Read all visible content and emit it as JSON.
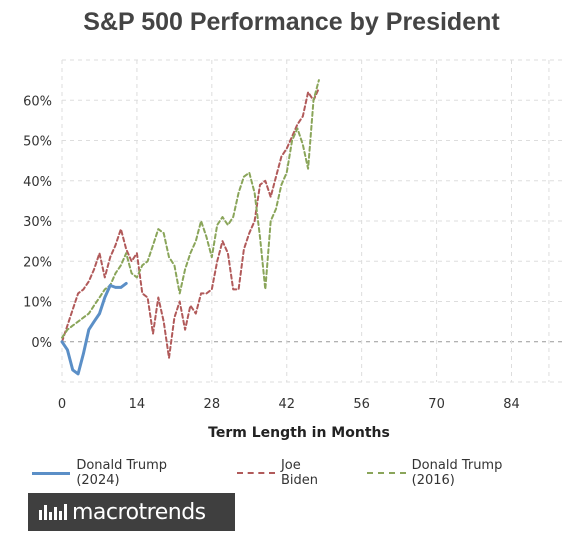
{
  "title": "S&P 500 Performance by President",
  "logo": {
    "text": "macrotrends"
  },
  "colors": {
    "trump2024": "#5b8fc7",
    "biden": "#b15a5a",
    "trump2016": "#8aa55a",
    "grid": "#dddddd",
    "zero": "#999999"
  },
  "chart_data": {
    "type": "line",
    "title": "S&P 500 Performance by President",
    "xlabel": "Term Length in Months",
    "ylabel": "",
    "xlim": [
      0,
      94
    ],
    "ylim": [
      -10,
      70
    ],
    "xticks": [
      0,
      14,
      28,
      42,
      56,
      70,
      84
    ],
    "yticks": [
      0,
      10,
      20,
      30,
      40,
      50,
      60
    ],
    "ytick_labels": [
      "0%",
      "10%",
      "20%",
      "30%",
      "40%",
      "50%",
      "60%"
    ],
    "grid": true,
    "legend_position": "bottom",
    "series": [
      {
        "name": "Donald Trump (2024)",
        "style": "solid",
        "color": "#5b8fc7",
        "x": [
          0,
          1,
          2,
          3,
          4,
          5,
          6,
          7,
          8,
          9,
          10,
          11,
          12
        ],
        "y": [
          0,
          -2,
          -7,
          -8,
          -3,
          3,
          5,
          7,
          11,
          14,
          13.5,
          13.5,
          14.5
        ]
      },
      {
        "name": "Joe Biden",
        "style": "dashed",
        "color": "#b15a5a",
        "x": [
          0,
          1,
          2,
          3,
          4,
          5,
          6,
          7,
          8,
          9,
          10,
          11,
          12,
          13,
          14,
          15,
          16,
          17,
          18,
          19,
          20,
          21,
          22,
          23,
          24,
          25,
          26,
          27,
          28,
          29,
          30,
          31,
          32,
          33,
          34,
          35,
          36,
          37,
          38,
          39,
          40,
          41,
          42,
          43,
          44,
          45,
          46,
          47,
          48
        ],
        "y": [
          0,
          4,
          8,
          12,
          13,
          15,
          18,
          22,
          16,
          21,
          24,
          28,
          23,
          20,
          22,
          12,
          11,
          2,
          11,
          5,
          -4,
          6,
          10,
          3,
          9,
          7,
          12,
          12,
          13,
          20,
          25,
          22,
          13,
          13,
          23,
          27,
          30,
          39,
          40,
          36,
          41,
          46,
          48,
          51,
          54,
          56,
          62,
          60,
          63
        ]
      },
      {
        "name": "Donald Trump (2016)",
        "style": "dashed",
        "color": "#8aa55a",
        "x": [
          0,
          1,
          2,
          3,
          4,
          5,
          6,
          7,
          8,
          9,
          10,
          11,
          12,
          13,
          14,
          15,
          16,
          17,
          18,
          19,
          20,
          21,
          22,
          23,
          24,
          25,
          26,
          27,
          28,
          29,
          30,
          31,
          32,
          33,
          34,
          35,
          36,
          37,
          38,
          39,
          40,
          41,
          42,
          43,
          44,
          45,
          46,
          47,
          48
        ],
        "y": [
          1,
          3,
          4,
          5,
          6,
          7,
          9,
          11,
          13,
          14,
          17,
          19,
          22,
          17,
          16,
          19,
          20,
          24,
          28,
          27,
          21,
          19,
          12,
          18,
          22,
          25,
          30,
          26,
          21,
          29,
          31,
          29,
          31,
          37,
          41,
          42,
          37,
          26,
          13,
          30,
          33,
          39,
          42,
          50,
          53,
          49,
          43,
          60,
          65
        ]
      }
    ]
  }
}
